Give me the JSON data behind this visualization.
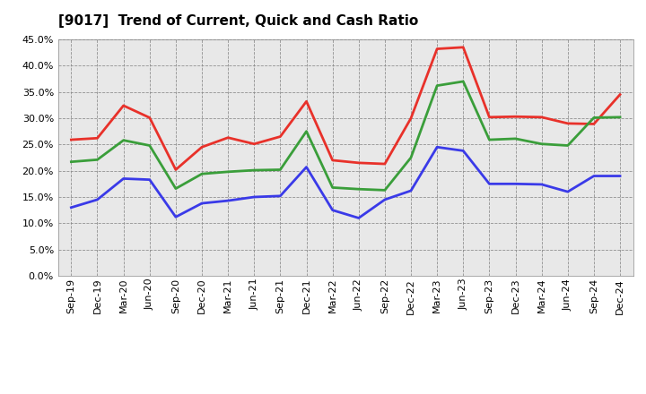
{
  "title": "[9017]  Trend of Current, Quick and Cash Ratio",
  "labels": [
    "Sep-19",
    "Dec-19",
    "Mar-20",
    "Jun-20",
    "Sep-20",
    "Dec-20",
    "Mar-21",
    "Jun-21",
    "Sep-21",
    "Dec-21",
    "Mar-22",
    "Jun-22",
    "Sep-22",
    "Dec-22",
    "Mar-23",
    "Jun-23",
    "Sep-23",
    "Dec-23",
    "Mar-24",
    "Jun-24",
    "Sep-24",
    "Dec-24"
  ],
  "current_ratio": [
    25.9,
    26.2,
    32.4,
    30.1,
    20.2,
    24.5,
    26.3,
    25.1,
    26.5,
    33.2,
    22.0,
    21.5,
    21.3,
    30.0,
    43.2,
    43.5,
    30.2,
    30.3,
    30.2,
    29.0,
    28.9,
    34.5
  ],
  "quick_ratio": [
    21.7,
    22.1,
    25.8,
    24.8,
    16.6,
    19.4,
    19.8,
    20.1,
    20.2,
    27.5,
    16.8,
    16.5,
    16.3,
    22.5,
    36.2,
    37.0,
    25.9,
    26.1,
    25.1,
    24.8,
    30.1,
    30.2
  ],
  "cash_ratio": [
    13.0,
    14.5,
    18.5,
    18.3,
    11.2,
    13.8,
    14.3,
    15.0,
    15.2,
    20.7,
    12.5,
    11.0,
    14.5,
    16.2,
    24.5,
    23.8,
    17.5,
    17.5,
    17.4,
    16.0,
    19.0,
    19.0
  ],
  "current_color": "#e8312a",
  "quick_color": "#3a9e3a",
  "cash_color": "#3a3ae8",
  "ylim": [
    0,
    45
  ],
  "yticks": [
    0,
    5,
    10,
    15,
    20,
    25,
    30,
    35,
    40,
    45
  ],
  "bg_color": "#ffffff",
  "plot_bg_color": "#e8e8e8",
  "line_width": 2.0,
  "title_fontsize": 11,
  "tick_fontsize": 8,
  "legend_fontsize": 9
}
